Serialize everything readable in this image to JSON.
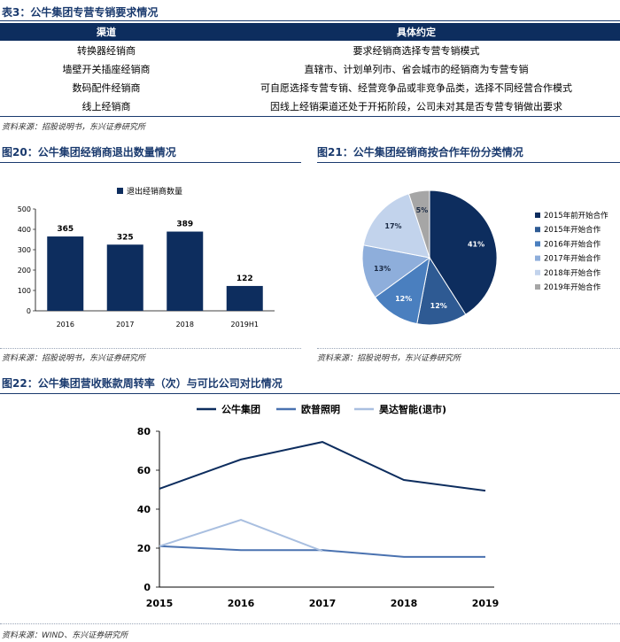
{
  "table3": {
    "title": "表3：公牛集团专营专销要求情况",
    "headers": [
      "渠道",
      "具体约定"
    ],
    "rows": [
      [
        "转换器经销商",
        "要求经销商选择专营专销模式"
      ],
      [
        "墙壁开关插座经销商",
        "直辖市、计划单列市、省会城市的经销商为专营专销"
      ],
      [
        "数码配件经销商",
        "可自愿选择专营专销、经营竞争品或非竞争品类，选择不同经营合作模式"
      ],
      [
        "线上经销商",
        "因线上经销渠道还处于开拓阶段，公司未对其是否专营专销做出要求"
      ]
    ],
    "source": "资料来源：招股说明书，东兴证券研究所"
  },
  "fig20": {
    "title": "图20：公牛集团经销商退出数量情况",
    "source": "资料来源：招股说明书，东兴证券研究所"
  },
  "fig21": {
    "title": "图21：公牛集团经销商按合作年份分类情况",
    "source": "资料来源：招股说明书，东兴证券研究所"
  },
  "fig22": {
    "title": "图22：公牛集团营收账款周转率（次）与可比公司对比情况",
    "source": "资料来源：WIND、东兴证券研究所"
  },
  "chart_data": [
    {
      "type": "bar",
      "categories": [
        "2016",
        "2017",
        "2018",
        "2019H1"
      ],
      "series": [
        {
          "name": "退出经销商数量",
          "values": [
            365,
            325,
            389,
            122
          ]
        }
      ],
      "ylim": [
        0,
        500
      ],
      "yticks": [
        0,
        100,
        200,
        300,
        400,
        500
      ],
      "legend": "top",
      "grid": false,
      "color": "#0d2d5e"
    },
    {
      "type": "pie",
      "labels": [
        "2015年前开始合作",
        "2015年开始合作",
        "2016年开始合作",
        "2017年开始合作",
        "2018年开始合作",
        "2019年开始合作"
      ],
      "values": [
        41,
        12,
        12,
        13,
        17,
        5
      ],
      "value_labels": [
        "41%",
        "12%",
        "12%",
        "13%",
        "17%",
        "5%"
      ],
      "colors": [
        "#0d2d5e",
        "#2e5a93",
        "#4a7fbf",
        "#8eaedb",
        "#c2d3ec",
        "#a6a6a6"
      ],
      "legend": "right"
    },
    {
      "type": "line",
      "x": [
        "2015",
        "2016",
        "2017",
        "2018",
        "2019"
      ],
      "series": [
        {
          "name": "公牛集团",
          "values": [
            50.5,
            65.5,
            74.5,
            55,
            49.5
          ],
          "color": "#0d2d5e"
        },
        {
          "name": "欧普照明",
          "values": [
            21,
            19,
            19,
            15.5,
            15.5
          ],
          "color": "#4a72b0"
        },
        {
          "name": "昊达智能(退市)",
          "values": [
            21,
            34.5,
            18.5,
            null,
            null
          ],
          "color": "#a9bfe0"
        }
      ],
      "ylim": [
        0,
        80
      ],
      "yticks": [
        0,
        20,
        40,
        60,
        80
      ],
      "legend": "top",
      "grid": false
    }
  ]
}
